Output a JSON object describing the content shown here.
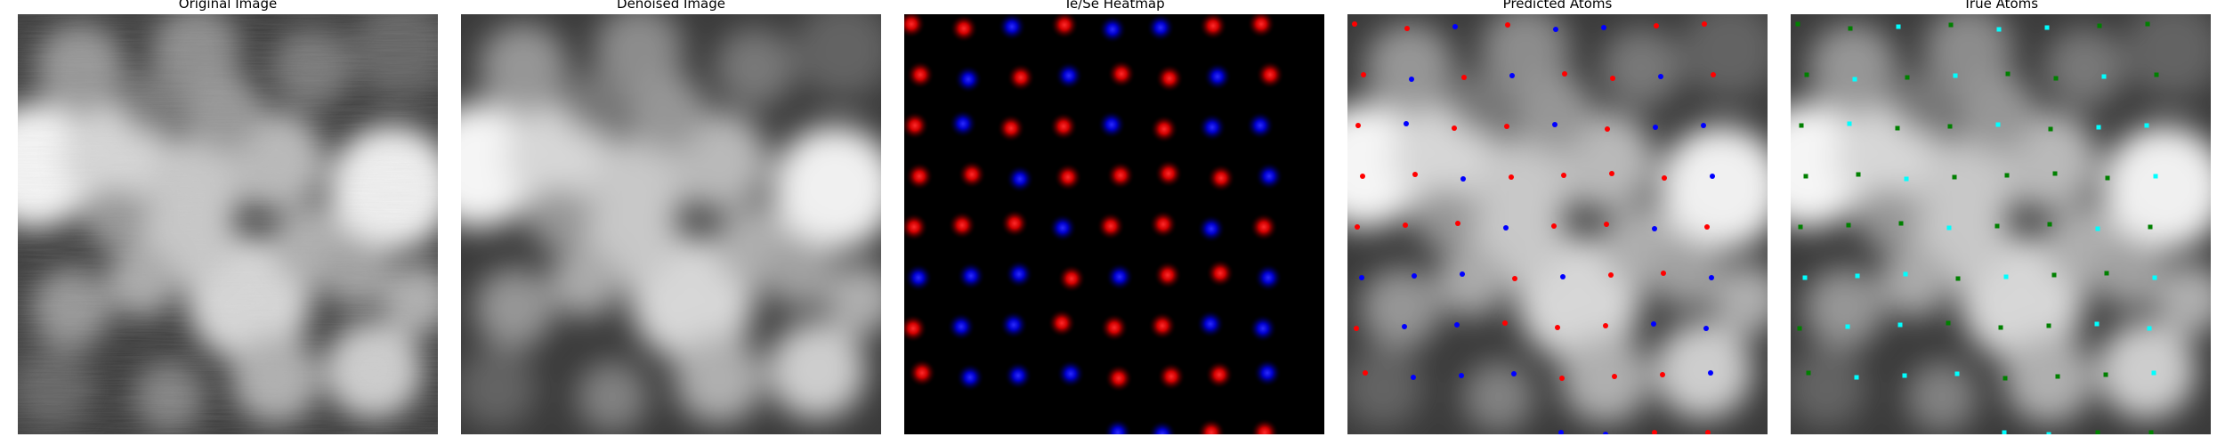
{
  "panels": [
    {
      "title": "Original Image"
    },
    {
      "title": "Denoised Image"
    },
    {
      "title": "Te/Se Heatmap"
    },
    {
      "title": "Predicted Atoms"
    },
    {
      "title": "True Atoms"
    }
  ],
  "colors": {
    "te": "#ff0000",
    "se": "#0000ff",
    "true_te": "#008000",
    "true_se": "#00ffff",
    "background": "#000000"
  },
  "icons": {
    "predicted_marker": "filled-circle",
    "true_marker": "filled-square"
  }
}
